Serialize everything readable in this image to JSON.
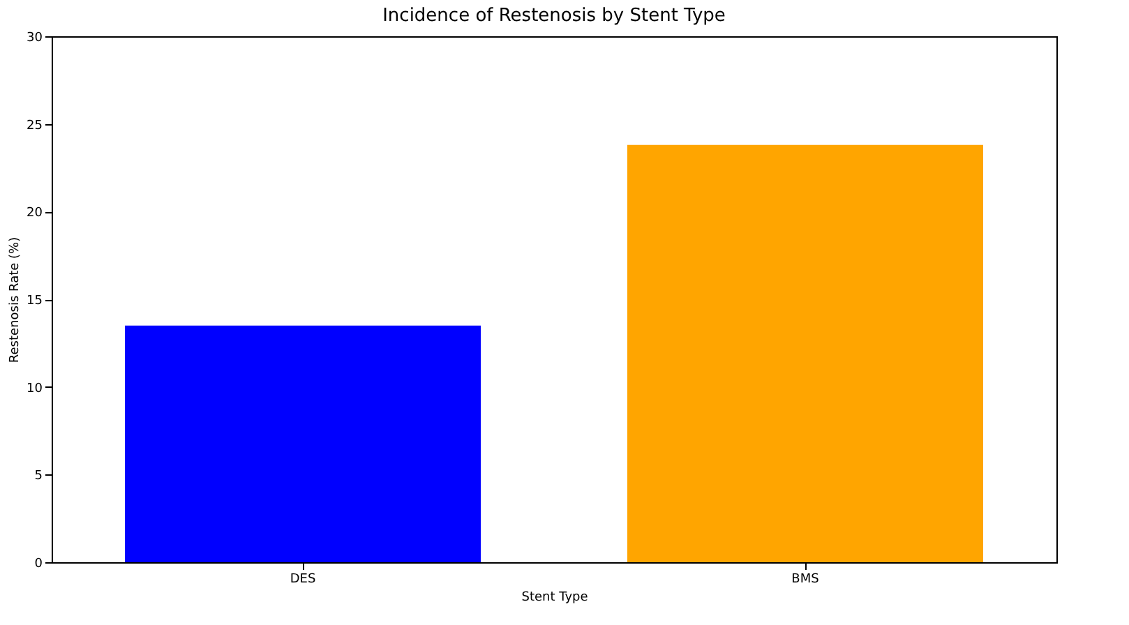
{
  "chart_data": {
    "type": "bar",
    "title": "Incidence of Restenosis by Stent Type",
    "xlabel": "Stent Type",
    "ylabel": "Restenosis Rate (%)",
    "categories": [
      "DES",
      "BMS"
    ],
    "values": [
      13.5,
      23.8
    ],
    "colors": [
      "#0000ff",
      "#ffa500"
    ],
    "ylim": [
      0,
      30
    ],
    "yticks": [
      0,
      5,
      10,
      15,
      20,
      25,
      30
    ],
    "grid": false
  }
}
